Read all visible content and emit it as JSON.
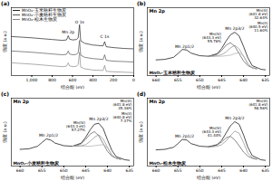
{
  "chart_data": [
    {
      "type": "line",
      "panel": "(a)",
      "x_label": "结合能 (eV)",
      "y_label": "强度 (a.u.)",
      "xlim": [
        1200,
        0
      ],
      "xticks": [
        1000,
        800,
        600,
        400,
        200,
        0
      ],
      "ylim": [
        0,
        16
      ],
      "tick_labels": "x",
      "legend": "top-left",
      "x": [
        1200,
        1000,
        900,
        800,
        700,
        660,
        650,
        642,
        630,
        600,
        560,
        545,
        531,
        520,
        480,
        400,
        300,
        285,
        270,
        200,
        100,
        0
      ],
      "series": [
        {
          "name": "MnO₂-玉米秸秆生物炭",
          "color": "#222222",
          "values": [
            9.2,
            8.9,
            8.7,
            8.5,
            8.3,
            8.4,
            8.9,
            9.4,
            8.6,
            8.4,
            8.5,
            8.9,
            12.0,
            8.2,
            7.6,
            7.2,
            7.0,
            8.0,
            6.8,
            6.6,
            6.4,
            6.3
          ]
        },
        {
          "name": "MnO₂-小麦秸秆生物炭",
          "color": "#555555",
          "values": [
            5.8,
            5.5,
            5.3,
            5.1,
            4.9,
            5.0,
            5.4,
            5.8,
            5.1,
            4.9,
            5.0,
            5.4,
            8.3,
            4.8,
            4.3,
            4.0,
            3.8,
            4.9,
            3.6,
            3.4,
            3.3,
            3.2
          ]
        },
        {
          "name": "MnO₂-松木生物炭",
          "color": "#888888",
          "values": [
            3.0,
            2.7,
            2.5,
            2.3,
            2.1,
            2.2,
            2.6,
            3.0,
            2.3,
            2.1,
            2.2,
            2.6,
            5.5,
            2.0,
            1.6,
            1.3,
            1.2,
            2.4,
            1.0,
            0.9,
            0.8,
            0.7
          ]
        }
      ],
      "annotations": [
        {
          "text": "Mn 2p",
          "x": 642,
          "y": 10.3
        },
        {
          "text": "O 1s",
          "x": 531,
          "y": 12.6
        },
        {
          "text": "C 1s",
          "x": 285,
          "y": 9.2
        }
      ]
    },
    {
      "type": "line",
      "panel": "(b)",
      "title": "Mn 2p",
      "sample": "MnO₂-玉米秸秆生物炭",
      "x_label": "结合能 (eV)",
      "y_label": "强度 (a.u.)",
      "xlim": [
        662,
        634
      ],
      "xticks": [
        660,
        655,
        650,
        645,
        640,
        635
      ],
      "ylim": [
        0,
        13
      ],
      "tick_labels": "x",
      "x": [
        660,
        658,
        656,
        655,
        654,
        653,
        652,
        650,
        648,
        646,
        645,
        644,
        643,
        642,
        641,
        640,
        639,
        638,
        636,
        635
      ],
      "series": [
        {
          "color": "#000000",
          "values": [
            3.0,
            3.1,
            3.5,
            4.2,
            5.0,
            4.9,
            4.3,
            3.8,
            3.7,
            4.2,
            5.2,
            6.6,
            7.8,
            8.3,
            7.6,
            5.6,
            3.4,
            1.9,
            1.2,
            1.1
          ]
        },
        {
          "name": "Mn(IV)",
          "label_lines": [
            "(643.3 eV)",
            "55.76%"
          ],
          "color": "#555555",
          "x": [
            648,
            647,
            646,
            645,
            644,
            643,
            642,
            641,
            640,
            639,
            638,
            637
          ],
          "values": [
            3.7,
            3.8,
            4.1,
            4.8,
            5.8,
            6.3,
            5.6,
            4.2,
            2.8,
            1.9,
            1.5,
            1.3
          ]
        },
        {
          "name": "Mn(III)",
          "label_lines": [
            "(641.8 eV)",
            "32.64%"
          ],
          "color": "#888888",
          "x": [
            648,
            647,
            646,
            645,
            644,
            643,
            642,
            641,
            640,
            639,
            638,
            637
          ],
          "values": [
            3.7,
            3.7,
            3.8,
            4.0,
            4.5,
            5.3,
            5.8,
            5.1,
            3.7,
            2.2,
            1.5,
            1.3
          ]
        },
        {
          "name": "Mn(II)",
          "label_lines": [
            "(640.5 eV)",
            "11.60%"
          ],
          "color": "#aaaaaa",
          "x": [
            648,
            647,
            646,
            645,
            644,
            643,
            642,
            641,
            640,
            639,
            638,
            637
          ],
          "values": [
            3.7,
            3.7,
            3.7,
            3.7,
            3.8,
            3.9,
            4.2,
            4.4,
            3.8,
            2.3,
            1.5,
            1.3
          ]
        }
      ],
      "annotations": [
        {
          "text": "Mn 2p1/2",
          "x": 653.5,
          "y": 5.6
        },
        {
          "text": "Mn 2p3/2",
          "x": 642,
          "y": 9.0
        }
      ]
    },
    {
      "type": "line",
      "panel": "(c)",
      "title": "Mn 2p",
      "sample": "MnO₂-小麦秸秆生物炭",
      "x_label": "结合能 (eV)",
      "y_label": "强度 (a.u.)",
      "xlim": [
        662,
        634
      ],
      "xticks": [
        660,
        655,
        650,
        645,
        640,
        635
      ],
      "ylim": [
        0,
        13
      ],
      "tick_labels": "x",
      "x": [
        660,
        658,
        656,
        655,
        654,
        653,
        652,
        650,
        648,
        646,
        645,
        644,
        643,
        642,
        641,
        640,
        639,
        638,
        636,
        635
      ],
      "series": [
        {
          "color": "#000000",
          "values": [
            3.2,
            3.3,
            3.8,
            4.5,
            5.2,
            5.0,
            4.4,
            3.9,
            3.8,
            4.4,
            5.5,
            6.9,
            8.0,
            8.2,
            7.2,
            5.0,
            3.0,
            1.8,
            1.2,
            1.1
          ]
        },
        {
          "name": "Mn(IV)",
          "label_lines": [
            "(643.3 eV)",
            "57.27%"
          ],
          "color": "#555555",
          "x": [
            648,
            647,
            646,
            645,
            644,
            643,
            642,
            641,
            640,
            639,
            638,
            637
          ],
          "values": [
            3.8,
            3.9,
            4.3,
            5.1,
            6.1,
            6.6,
            5.8,
            4.3,
            2.8,
            1.9,
            1.5,
            1.3
          ]
        },
        {
          "name": "Mn(III)",
          "label_lines": [
            "(641.8 eV)",
            "35.36%"
          ],
          "color": "#888888",
          "x": [
            648,
            647,
            646,
            645,
            644,
            643,
            642,
            641,
            640,
            639,
            638,
            637
          ],
          "values": [
            3.8,
            3.8,
            3.9,
            4.1,
            4.7,
            5.5,
            6.0,
            5.2,
            3.6,
            2.1,
            1.5,
            1.3
          ]
        },
        {
          "name": "Mn(II)",
          "label_lines": [
            "(640.8 eV)",
            "7.37%"
          ],
          "color": "#aaaaaa",
          "x": [
            648,
            647,
            646,
            645,
            644,
            643,
            642,
            641,
            640,
            639,
            638,
            637
          ],
          "values": [
            3.8,
            3.8,
            3.8,
            3.8,
            3.8,
            3.9,
            4.0,
            4.1,
            3.5,
            2.1,
            1.5,
            1.3
          ]
        }
      ],
      "annotations": [
        {
          "text": "Mn 2p1/2",
          "x": 653.5,
          "y": 5.8
        },
        {
          "text": "Mn 2p3/2",
          "x": 642,
          "y": 9.0
        }
      ]
    },
    {
      "type": "line",
      "panel": "(d)",
      "title": "Mn 2p",
      "sample": "MnO₂-松木生物炭",
      "x_label": "结合能 (eV)",
      "y_label": "强度 (a.u.)",
      "xlim": [
        662,
        634
      ],
      "xticks": [
        660,
        655,
        650,
        645,
        640,
        635
      ],
      "ylim": [
        0,
        13
      ],
      "tick_labels": "x",
      "x": [
        660,
        658,
        656,
        655,
        654,
        653,
        652,
        650,
        648,
        646,
        645,
        644,
        643,
        642,
        641,
        640,
        639,
        638,
        636,
        635
      ],
      "series": [
        {
          "color": "#000000",
          "values": [
            3.1,
            3.2,
            3.6,
            4.3,
            5.1,
            5.0,
            4.3,
            3.8,
            3.7,
            4.1,
            4.9,
            6.3,
            7.7,
            8.5,
            8.0,
            6.0,
            3.6,
            2.0,
            1.2,
            1.1
          ]
        },
        {
          "name": "Mn(IV)",
          "label_lines": [
            "(643.3 eV)",
            "41.44%"
          ],
          "color": "#555555",
          "x": [
            648,
            647,
            646,
            645,
            644,
            643,
            642,
            641,
            640,
            639,
            638,
            637
          ],
          "values": [
            3.7,
            3.8,
            4.1,
            4.6,
            5.4,
            5.7,
            5.0,
            3.9,
            2.7,
            1.9,
            1.5,
            1.3
          ]
        },
        {
          "name": "Mn(III)",
          "label_lines": [
            "(641.8 eV)",
            "58.56%"
          ],
          "color": "#888888",
          "x": [
            648,
            647,
            646,
            645,
            644,
            643,
            642,
            641,
            640,
            639,
            638,
            637
          ],
          "values": [
            3.7,
            3.7,
            3.8,
            4.1,
            4.8,
            5.8,
            6.7,
            6.3,
            4.5,
            2.5,
            1.6,
            1.3
          ]
        }
      ],
      "annotations": [
        {
          "text": "Mn 2p1/2",
          "x": 653.5,
          "y": 5.7
        },
        {
          "text": "Mn 2p3/2",
          "x": 642,
          "y": 9.2
        }
      ]
    }
  ]
}
